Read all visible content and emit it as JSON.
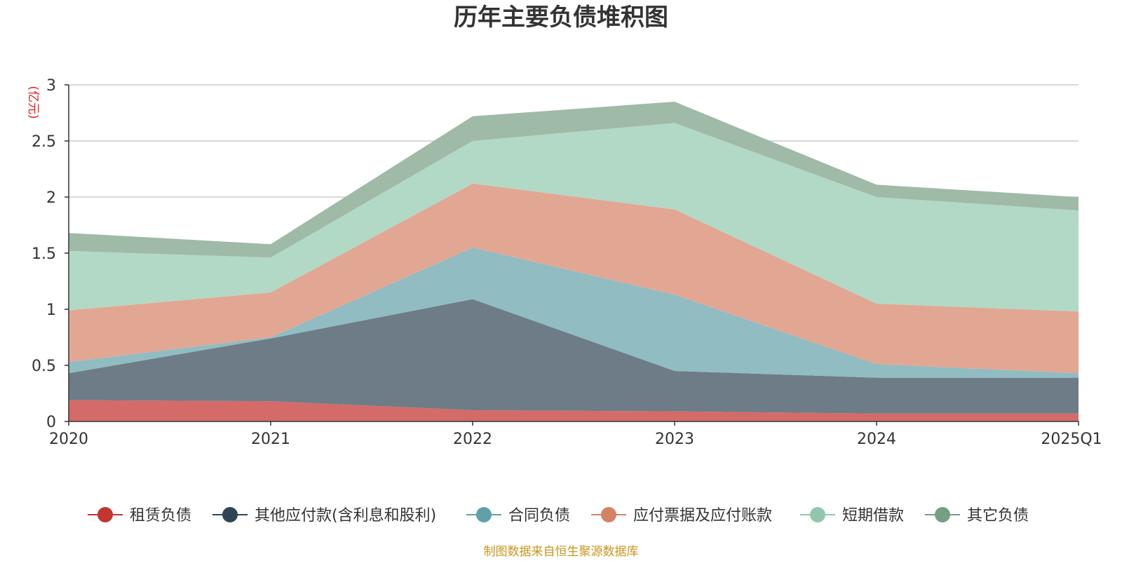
{
  "chart_data": {
    "type": "area",
    "title": "历年主要负债堆积图",
    "unit_label": "(亿元)",
    "categories": [
      "2020",
      "2021",
      "2022",
      "2023",
      "2024",
      "2025Q1"
    ],
    "y_ticks": [
      "0",
      "0.5",
      "1",
      "1.5",
      "2",
      "2.5",
      "3"
    ],
    "ylim": [
      0,
      3
    ],
    "stacked": true,
    "grid": true,
    "legend_position": "bottom",
    "series": [
      {
        "name": "租赁负债",
        "color": "#c23531",
        "area_color": "#d46b68",
        "values": [
          0.19,
          0.18,
          0.1,
          0.09,
          0.07,
          0.07
        ]
      },
      {
        "name": "其他应付款(含利息和股利)",
        "color": "#2f4554",
        "area_color": "#6d7c87",
        "values": [
          0.24,
          0.56,
          0.99,
          0.36,
          0.32,
          0.32
        ]
      },
      {
        "name": "合同负债",
        "color": "#61a0a8",
        "area_color": "#90bcc2",
        "values": [
          0.1,
          0.01,
          0.46,
          0.68,
          0.12,
          0.04
        ]
      },
      {
        "name": "应付票据及应付账款",
        "color": "#d48265",
        "area_color": "#e1a793",
        "values": [
          0.46,
          0.4,
          0.57,
          0.76,
          0.54,
          0.55
        ]
      },
      {
        "name": "短期借款",
        "color": "#91c7ae",
        "area_color": "#b2d9c6",
        "values": [
          0.53,
          0.31,
          0.38,
          0.77,
          0.95,
          0.9
        ]
      },
      {
        "name": "其它负债",
        "color": "#749f83",
        "area_color": "#9fbaa6",
        "values": [
          0.16,
          0.12,
          0.22,
          0.19,
          0.11,
          0.12
        ]
      }
    ]
  },
  "footer": "制图数据来自恒生聚源数据库"
}
